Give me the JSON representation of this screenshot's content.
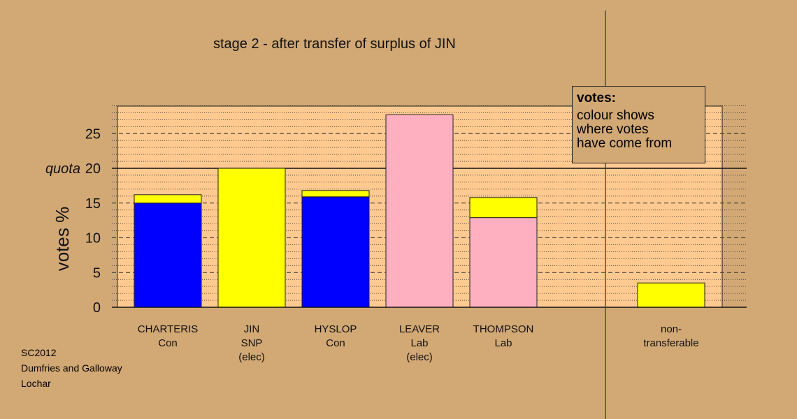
{
  "title": "stage 2 - after transfer of surplus of JIN",
  "notes": [
    "SC2012",
    "Dumfries and Galloway",
    "Lochar"
  ],
  "legend": {
    "title": "votes:",
    "lines": [
      "colour shows",
      "where votes",
      "have come from"
    ]
  },
  "colors": {
    "background": "#D2A874",
    "plot_background": "#FFC990",
    "Con": "#0000FF",
    "SNP": "#FFFF00",
    "Lab": "#FFB0C0"
  },
  "chart_data": {
    "type": "bar",
    "stacked": true,
    "ylabel": "votes %",
    "ylim": [
      0,
      29
    ],
    "yticks": [
      0,
      5,
      10,
      15,
      20,
      25
    ],
    "quota": {
      "value": 20,
      "label": "quota"
    },
    "categories": [
      {
        "lines": [
          "CHARTERIS",
          "Con"
        ]
      },
      {
        "lines": [
          "JIN",
          "SNP",
          "(elec)"
        ]
      },
      {
        "lines": [
          "HYSLOP",
          "Con"
        ]
      },
      {
        "lines": [
          "LEAVER",
          "Lab",
          "(elec)"
        ]
      },
      {
        "lines": [
          "THOMPSON",
          "Lab"
        ]
      },
      {
        "lines": [
          "non-",
          "transferable"
        ]
      }
    ],
    "bars": [
      {
        "segments": [
          {
            "from": "Con",
            "value": 15.0
          },
          {
            "from": "SNP",
            "value": 1.2
          }
        ]
      },
      {
        "segments": [
          {
            "from": "SNP",
            "value": 20.0
          }
        ]
      },
      {
        "segments": [
          {
            "from": "Con",
            "value": 15.9
          },
          {
            "from": "SNP",
            "value": 0.9
          }
        ]
      },
      {
        "segments": [
          {
            "from": "Lab",
            "value": 27.7
          }
        ]
      },
      {
        "segments": [
          {
            "from": "Lab",
            "value": 12.9
          },
          {
            "from": "SNP",
            "value": 2.9
          }
        ]
      },
      {
        "segments": [
          {
            "from": "SNP",
            "value": 3.5
          }
        ]
      }
    ],
    "grid": true,
    "legend_position": "top-right"
  }
}
